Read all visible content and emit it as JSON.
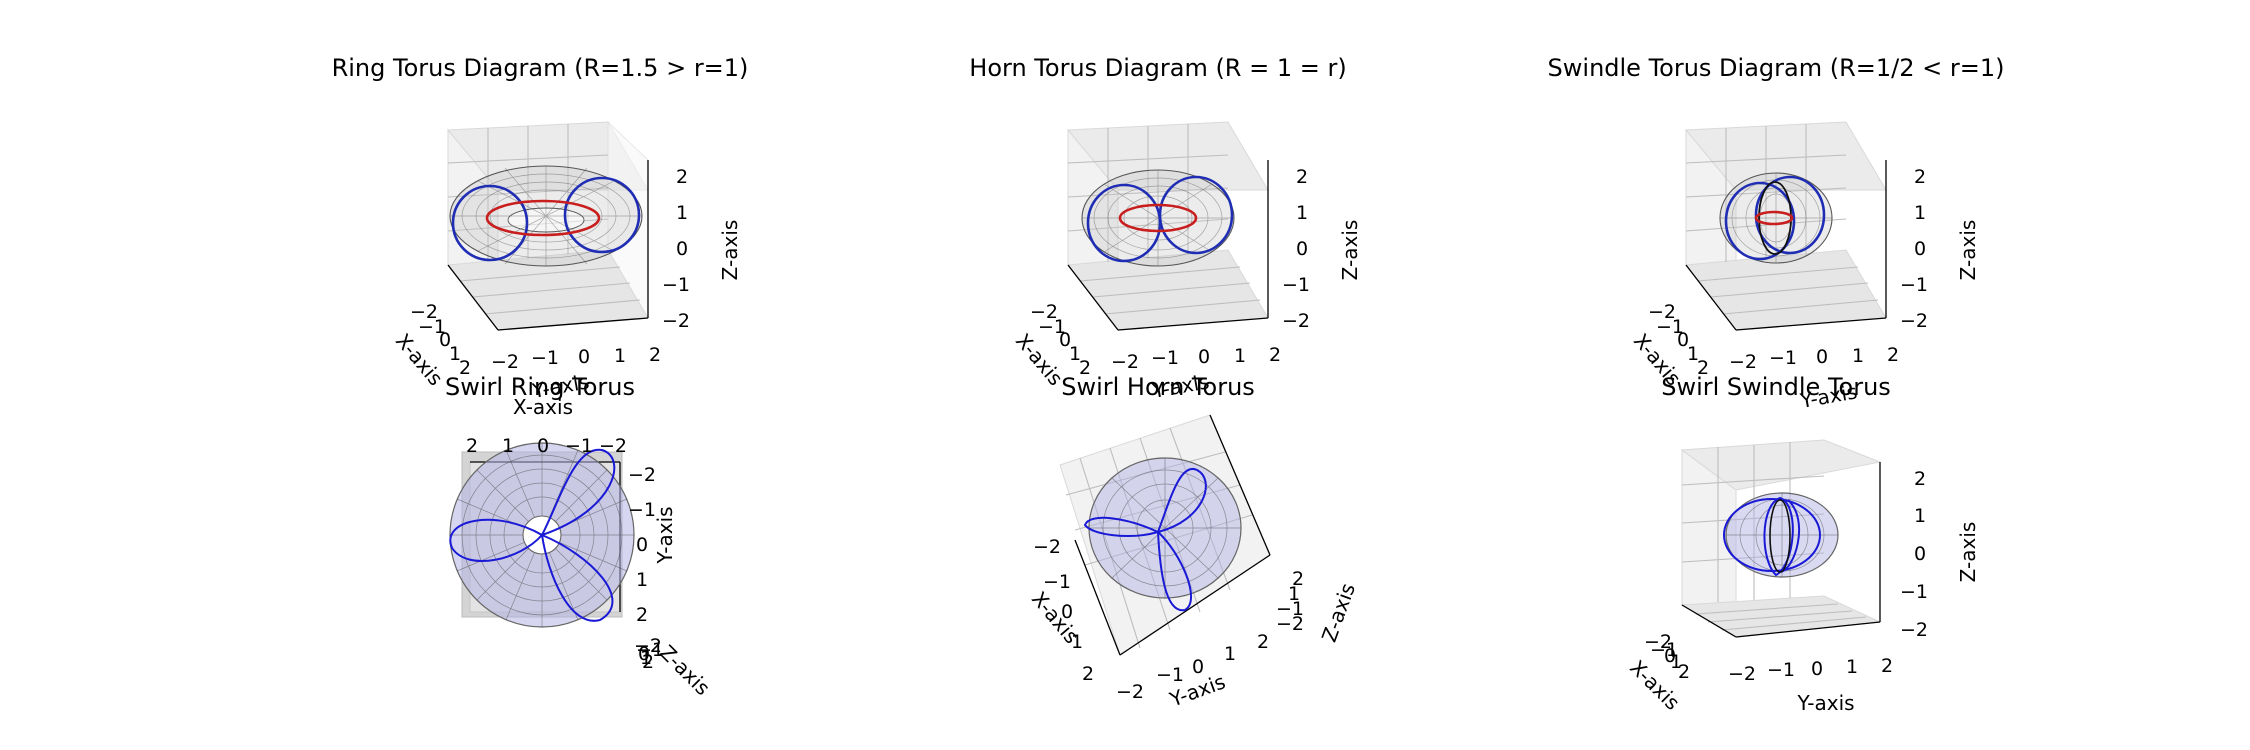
{
  "chart_data": [
    {
      "type": "surface3d",
      "title": "Ring Torus Diagram (R=1.5 > r=1)",
      "R": 1.5,
      "r": 1,
      "surface_color": "#c8c8c8",
      "curves": [
        {
          "kind": "meridian_left",
          "color": "#1f2db5"
        },
        {
          "kind": "meridian_right",
          "color": "#1f2db5"
        },
        {
          "kind": "center_circle",
          "color": "#c81e1e"
        }
      ],
      "xlabel": "X-axis",
      "ylabel": "Y-axis",
      "zlabel": "Z-axis",
      "xlim": [
        -2,
        2
      ],
      "ylim": [
        -2,
        2
      ],
      "zlim": [
        -2,
        2
      ],
      "xticks": [
        "−2",
        "−1",
        "0",
        "1",
        "2"
      ],
      "yticks": [
        "−2",
        "−1",
        "0",
        "1",
        "2"
      ],
      "zticks": [
        "−2",
        "−1",
        "0",
        "1",
        "2"
      ]
    },
    {
      "type": "surface3d",
      "title": "Horn Torus Diagram (R = 1 = r)",
      "R": 1,
      "r": 1,
      "surface_color": "#c8c8c8",
      "curves": [
        {
          "kind": "meridian_left",
          "color": "#1f2db5"
        },
        {
          "kind": "meridian_right",
          "color": "#1f2db5"
        },
        {
          "kind": "center_circle",
          "color": "#c81e1e"
        }
      ],
      "xlabel": "X-axis",
      "ylabel": "Y-axis",
      "zlabel": "Z-axis",
      "xlim": [
        -2,
        2
      ],
      "ylim": [
        -2,
        2
      ],
      "zlim": [
        -2,
        2
      ],
      "xticks": [
        "−2",
        "−1",
        "0",
        "1",
        "2"
      ],
      "yticks": [
        "−2",
        "−1",
        "0",
        "1",
        "2"
      ],
      "zticks": [
        "−2",
        "−1",
        "0",
        "1",
        "2"
      ]
    },
    {
      "type": "surface3d",
      "title": "Swindle Torus Diagram (R=1/2 < r=1)",
      "R": 0.5,
      "r": 1,
      "surface_color": "#c8c8c8",
      "curves": [
        {
          "kind": "meridian_left",
          "color": "#1f2db5"
        },
        {
          "kind": "meridian_right",
          "color": "#1f2db5"
        },
        {
          "kind": "center_circle",
          "color": "#c81e1e"
        }
      ],
      "xlabel": "X-axis",
      "ylabel": "Y-axis",
      "zlabel": "Z-axis",
      "xlim": [
        -2,
        2
      ],
      "ylim": [
        -2,
        2
      ],
      "zlim": [
        -2,
        2
      ],
      "xticks": [
        "−2",
        "−1",
        "0",
        "1",
        "2"
      ],
      "yticks": [
        "−2",
        "−1",
        "0",
        "1",
        "2"
      ],
      "zticks": [
        "−2",
        "−1",
        "0",
        "1",
        "2"
      ]
    },
    {
      "type": "surface3d",
      "title": "Swirl Ring Torus",
      "R": 1.5,
      "r": 1,
      "surface_color": "#b4b4e6",
      "swirl_lobes": 3,
      "curve_color": "#1a1ad6",
      "view": "top",
      "xlabel": "X-axis",
      "ylabel": "Y-axis",
      "zlabel": "Z-axis",
      "xlim": [
        -2,
        2
      ],
      "ylim": [
        -2,
        2
      ],
      "zlim": [
        -2,
        2
      ],
      "xticks": [
        "2",
        "1",
        "0",
        "−1",
        "−2"
      ],
      "yticks": [
        "−2",
        "−1",
        "0",
        "1",
        "2"
      ],
      "zticks": [
        "−2",
        "−1",
        "0",
        "1",
        "2"
      ]
    },
    {
      "type": "surface3d",
      "title": "Swirl Horn Torus",
      "R": 1,
      "r": 1,
      "surface_color": "#b4b4e6",
      "swirl_lobes": 3,
      "curve_color": "#1a1ad6",
      "view": "tilted",
      "xlabel": "X-axis",
      "ylabel": "Y-axis",
      "zlabel": "Z-axis",
      "xlim": [
        -2,
        2
      ],
      "ylim": [
        -2,
        2
      ],
      "zlim": [
        -2,
        2
      ],
      "xticks": [
        "−2",
        "−1",
        "0",
        "1",
        "2"
      ],
      "yticks": [
        "−2",
        "−1",
        "0",
        "1",
        "2"
      ],
      "zticks": [
        "2",
        "1",
        "−1",
        "−2"
      ]
    },
    {
      "type": "surface3d",
      "title": "Swirl Swindle Torus",
      "R": 0.5,
      "r": 1,
      "surface_color": "#b4b4e6",
      "swirl_lobes": 3,
      "curve_color": "#1a1ad6",
      "view": "standard",
      "xlabel": "X-axis",
      "ylabel": "Y-axis",
      "zlabel": "Z-axis",
      "xlim": [
        -2,
        2
      ],
      "ylim": [
        -2,
        2
      ],
      "zlim": [
        -2,
        2
      ],
      "xticks": [
        "−2",
        "−1",
        "0",
        "1",
        "2"
      ],
      "yticks": [
        "−2",
        "−1",
        "0",
        "1",
        "2"
      ],
      "zticks": [
        "−2",
        "−1",
        "0",
        "1",
        "2"
      ]
    }
  ]
}
